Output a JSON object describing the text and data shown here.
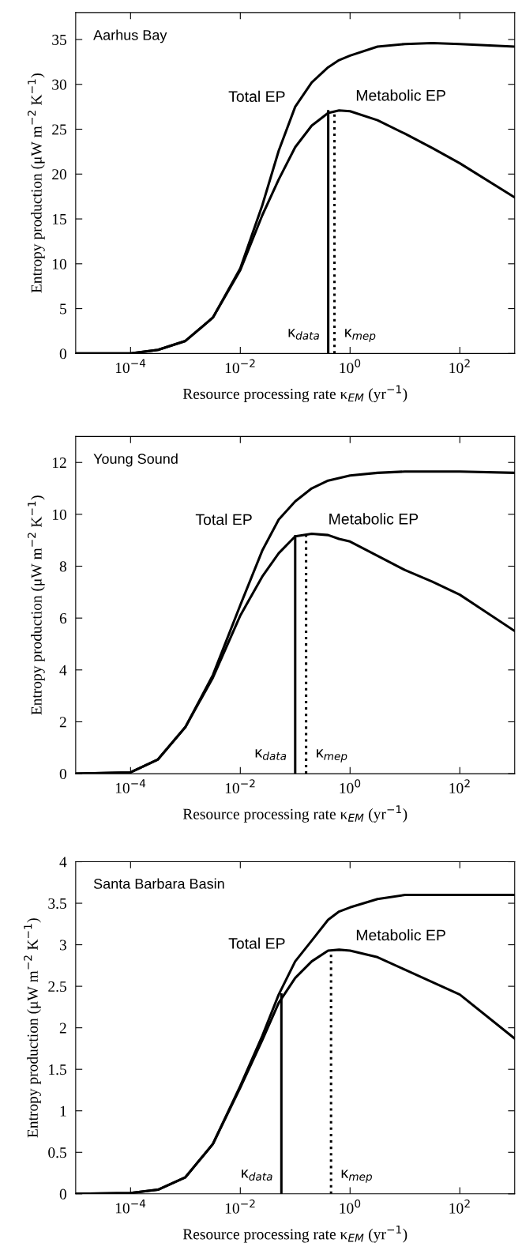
{
  "chart_data": [
    {
      "type": "line",
      "title": "Aarhus Bay",
      "xlabel": "Resource processing rate κ$_{EM}$ (yr$^{−1}$)",
      "ylabel": "Entropy production (μW m$^{−2}$ K$^{−1}$)",
      "log": "x",
      "grid": false,
      "legend": false,
      "x": [
        1e-05,
        0.0001,
        0.000316,
        0.001,
        0.00316,
        0.01,
        0.0251,
        0.0501,
        0.1,
        0.2,
        0.398,
        0.631,
        1,
        3.16,
        10,
        31.6,
        100,
        1000
      ],
      "series": [
        {
          "name": "Total EP",
          "color": "#000000",
          "values": [
            0,
            0,
            0.4,
            1.4,
            4,
            9.5,
            16.5,
            22.6,
            27.5,
            30.2,
            31.9,
            32.7,
            33.2,
            34.2,
            34.5,
            34.6,
            34.5,
            34.2
          ]
        },
        {
          "name": "Metabolic EP",
          "color": "#000000",
          "values": [
            0,
            0,
            0.4,
            1.4,
            4,
            9.3,
            15.4,
            19.4,
            23,
            25.4,
            26.8,
            27.1,
            27.0,
            26.0,
            24.5,
            22.9,
            21.2,
            17.4
          ]
        },
        {
          "name": "κ$_{data}$",
          "color": "#000000",
          "line_style": "solid",
          "x": [
            0.4,
            0.4
          ],
          "values": [
            0,
            27
          ]
        },
        {
          "name": "κ$_{mep}$",
          "color": "#000000",
          "line_style": "dotted",
          "x": [
            0.52,
            0.52
          ],
          "values": [
            0,
            27.1
          ]
        }
      ],
      "xlim": [
        1e-05,
        1000
      ],
      "xticks": [
        {
          "value": 0.0001,
          "label": "10$^{−4}$"
        },
        {
          "value": 0.01,
          "label": "10$^{−2}$"
        },
        {
          "value": 1,
          "label": "10$^{0}$"
        },
        {
          "value": 100,
          "label": "10$^{2}$"
        }
      ],
      "ylim": [
        0,
        38
      ],
      "yticks": [
        0,
        5,
        10,
        15,
        20,
        25,
        30,
        35
      ]
    },
    {
      "type": "line",
      "title": "Young Sound",
      "xlabel": "Resource processing rate κ$_{EM}$ (yr$^{−1}$)",
      "ylabel": "Entropy production (μW m$^{−2}$ K$^{−1}$)",
      "log": "x",
      "grid": false,
      "legend": false,
      "x": [
        1e-05,
        0.0001,
        0.000316,
        0.001,
        0.00316,
        0.01,
        0.0251,
        0.0501,
        0.1,
        0.2,
        0.398,
        0.631,
        1,
        3.16,
        10,
        31.6,
        100,
        1000
      ],
      "series": [
        {
          "name": "Total EP",
          "color": "#000000",
          "values": [
            0,
            0.05,
            0.55,
            1.8,
            3.8,
            6.5,
            8.6,
            9.8,
            10.5,
            11.0,
            11.3,
            11.4,
            11.5,
            11.6,
            11.65,
            11.65,
            11.65,
            11.6
          ]
        },
        {
          "name": "Metabolic EP",
          "color": "#000000",
          "values": [
            0,
            0.05,
            0.55,
            1.8,
            3.7,
            6.1,
            7.6,
            8.5,
            9.15,
            9.25,
            9.2,
            9.05,
            8.95,
            8.4,
            7.85,
            7.4,
            6.9,
            5.5
          ]
        },
        {
          "name": "κ$_{data}$",
          "color": "#000000",
          "line_style": "solid",
          "x": [
            0.1,
            0.1
          ],
          "values": [
            0,
            9.15
          ]
        },
        {
          "name": "κ$_{mep}$",
          "color": "#000000",
          "line_style": "dotted",
          "x": [
            0.158,
            0.158
          ],
          "values": [
            0,
            9.25
          ]
        }
      ],
      "xlim": [
        1e-05,
        1000
      ],
      "xticks": [
        {
          "value": 0.0001,
          "label": "10$^{−4}$"
        },
        {
          "value": 0.01,
          "label": "10$^{−2}$"
        },
        {
          "value": 1,
          "label": "10$^{0}$"
        },
        {
          "value": 100,
          "label": "10$^{2}$"
        }
      ],
      "ylim": [
        0,
        13
      ],
      "yticks": [
        0,
        2,
        4,
        6,
        8,
        10,
        12
      ]
    },
    {
      "type": "line",
      "title": "Santa Barbara Basin",
      "xlabel": "Resource processing rate κ$_{EM}$ (yr$^{−1}$)",
      "ylabel": "Entropy production (μW m$^{−2}$ K$^{−1}$)",
      "log": "x",
      "grid": false,
      "legend": false,
      "x": [
        1e-05,
        0.0001,
        0.000316,
        0.001,
        0.00316,
        0.01,
        0.0251,
        0.0501,
        0.1,
        0.2,
        0.398,
        0.631,
        1,
        3.16,
        10,
        31.6,
        100,
        1000
      ],
      "series": [
        {
          "name": "Total EP",
          "color": "#000000",
          "values": [
            0,
            0.01,
            0.05,
            0.2,
            0.6,
            1.3,
            1.9,
            2.4,
            2.8,
            3.05,
            3.3,
            3.4,
            3.45,
            3.55,
            3.6,
            3.6,
            3.6,
            3.6
          ]
        },
        {
          "name": "Metabolic EP",
          "color": "#000000",
          "values": [
            0,
            0.01,
            0.05,
            0.2,
            0.6,
            1.28,
            1.85,
            2.3,
            2.6,
            2.8,
            2.93,
            2.94,
            2.93,
            2.85,
            2.7,
            2.55,
            2.4,
            1.87
          ]
        },
        {
          "name": "κ$_{data}$",
          "color": "#000000",
          "line_style": "solid",
          "x": [
            0.056,
            0.056
          ],
          "values": [
            0,
            2.4
          ]
        },
        {
          "name": "κ$_{mep}$",
          "color": "#000000",
          "line_style": "dotted",
          "x": [
            0.45,
            0.45
          ],
          "values": [
            0,
            2.94
          ]
        }
      ],
      "xlim": [
        1e-05,
        1000
      ],
      "xticks": [
        {
          "value": 0.0001,
          "label": "10$^{−4}$"
        },
        {
          "value": 0.01,
          "label": "10$^{−2}$"
        },
        {
          "value": 1,
          "label": "10$^{0}$"
        },
        {
          "value": 100,
          "label": "10$^{2}$"
        }
      ],
      "ylim": [
        0,
        4
      ],
      "yticks": [
        0,
        0.5,
        1,
        1.5,
        2,
        2.5,
        3,
        3.5,
        4
      ]
    }
  ]
}
